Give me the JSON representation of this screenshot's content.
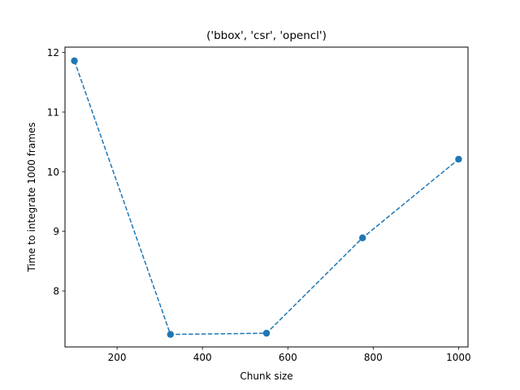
{
  "chart_data": {
    "type": "line",
    "title": "('bbox', 'csr', 'opencl')",
    "xlabel": "Chunk size",
    "ylabel": "Time to integrate 1000 frames",
    "xlim": [
      78,
      1022
    ],
    "ylim": [
      7.06,
      12.09
    ],
    "x_ticks": [
      200,
      400,
      600,
      800,
      1000
    ],
    "y_ticks": [
      8,
      9,
      10,
      11,
      12
    ],
    "grid": false,
    "legend": "none",
    "line_style": "dashed",
    "marker": "circle",
    "color": "#1f77b4",
    "series": [
      {
        "x": [
          100,
          325,
          550,
          775,
          1000
        ],
        "values": [
          11.86,
          7.27,
          7.29,
          8.89,
          10.21
        ]
      }
    ]
  }
}
